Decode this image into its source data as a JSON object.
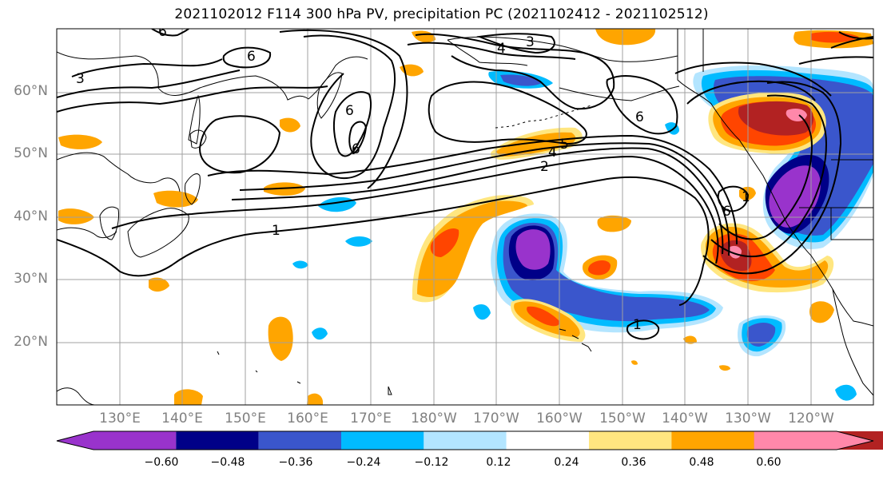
{
  "title": "2021102012 F114 300 hPa PV, precipitation PC (2021102412 - 2021102512)",
  "map": {
    "lat_labels": [
      "60°N",
      "50°N",
      "40°N",
      "30°N",
      "20°N"
    ],
    "lon_labels": [
      "130°E",
      "140°E",
      "150°E",
      "160°E",
      "170°E",
      "180°W",
      "170°W",
      "160°W",
      "150°W",
      "140°W",
      "130°W",
      "120°W"
    ],
    "gridlines": true,
    "pv_contour_labels": [
      "6",
      "3",
      "6",
      "4",
      "3",
      "6",
      "6",
      "6",
      "5",
      "4",
      "2",
      "1",
      "1",
      "1",
      "6"
    ],
    "colors": {
      "land_outline": "#000000",
      "grid": "#a0a0a0",
      "contour": "#000000"
    }
  },
  "colorbar": {
    "tick_labels": [
      "−0.60",
      "−0.48",
      "−0.36",
      "−0.24",
      "−0.12",
      "0.12",
      "0.24",
      "0.36",
      "0.48",
      "0.60"
    ],
    "colors": [
      "#9933cc",
      "#000088",
      "#3a56cc",
      "#00bbff",
      "#b3e5ff",
      "#ffffff",
      "#ffe680",
      "#ffa500",
      "#ff4500",
      "#b22222",
      "#ff88aa"
    ]
  }
}
